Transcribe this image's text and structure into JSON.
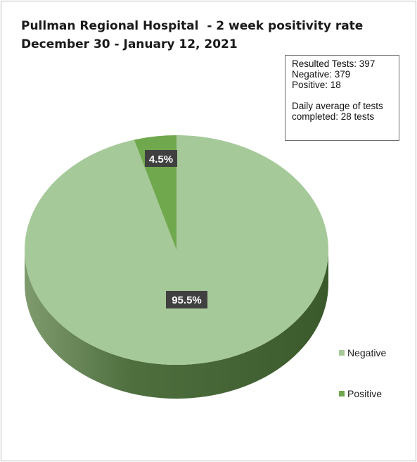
{
  "chart_data": {
    "type": "pie",
    "title_lines": [
      "Pullman Regional Hospital  - 2 week positivity rate",
      "December 30 - January 12, 2021"
    ],
    "slices": [
      {
        "name": "Negative",
        "value": 95.5,
        "label": "95.5%",
        "color": "#a6c999"
      },
      {
        "name": "Positive",
        "value": 4.5,
        "label": "4.5%",
        "color": "#70a84d"
      }
    ],
    "legend": {
      "position": "right",
      "items": [
        {
          "label": "Negative",
          "color": "#a6c999"
        },
        {
          "label": "Positive",
          "color": "#70a84d"
        }
      ]
    }
  },
  "stats_box": {
    "resulted": "Resulted Tests: 397",
    "negative": "Negative: 379",
    "positive": "Positive:  18",
    "daily_line1": "Daily average of tests",
    "daily_line2": "completed: 28  tests"
  }
}
